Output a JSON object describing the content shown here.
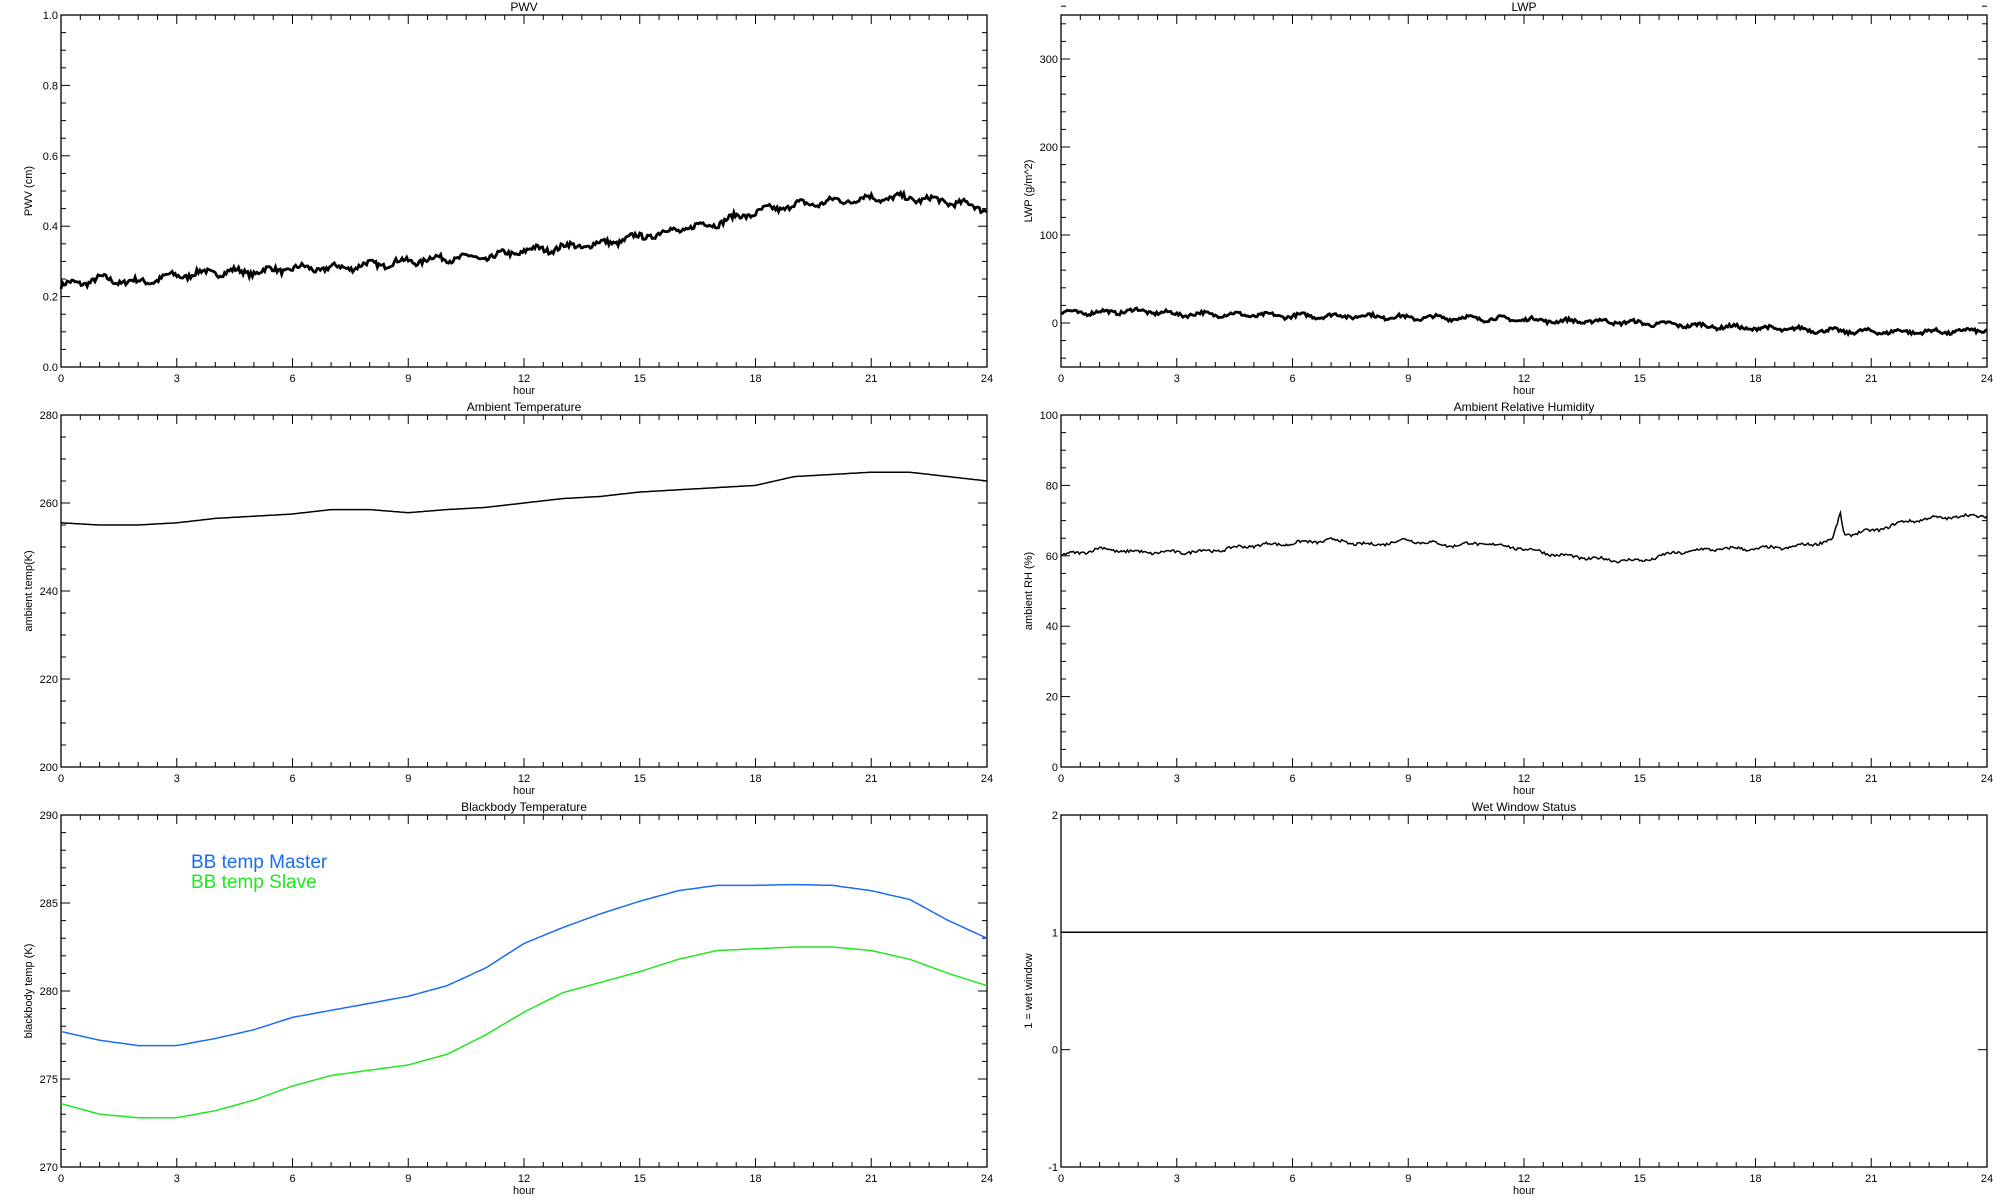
{
  "chart_data": [
    {
      "type": "line",
      "title": "PWV",
      "xlabel": "hour",
      "ylabel": "PWV (cm)",
      "xlim": [
        0,
        24
      ],
      "ylim": [
        0,
        1.0
      ],
      "xticks": [
        "0",
        "3",
        "6",
        "9",
        "12",
        "15",
        "18",
        "21",
        "24"
      ],
      "yticks": [
        "0.0",
        "0.2",
        "0.4",
        "0.6",
        "0.8",
        "1.0"
      ],
      "yminor": 4,
      "noise": 0.008,
      "x": [
        0,
        1,
        2,
        3,
        4,
        5,
        6,
        7,
        8,
        9,
        10,
        11,
        12,
        13,
        14,
        15,
        16,
        17,
        18,
        19,
        20,
        21,
        22,
        23,
        24
      ],
      "series": [
        {
          "name": "PWV",
          "color": "#000000",
          "values": [
            0.23,
            0.25,
            0.24,
            0.26,
            0.27,
            0.27,
            0.28,
            0.28,
            0.29,
            0.3,
            0.31,
            0.31,
            0.33,
            0.34,
            0.35,
            0.37,
            0.39,
            0.41,
            0.44,
            0.46,
            0.47,
            0.48,
            0.48,
            0.47,
            0.45
          ]
        }
      ]
    },
    {
      "type": "line",
      "title": "LWP",
      "xlabel": "hour",
      "ylabel": "LWP (g/m^2)",
      "xlim": [
        0,
        24
      ],
      "ylim": [
        -50,
        350
      ],
      "xticks": [
        "0",
        "3",
        "6",
        "9",
        "12",
        "15",
        "18",
        "21",
        "24"
      ],
      "yticks": [
        "0",
        "100",
        "200",
        "300"
      ],
      "ytick_values": [
        0,
        100,
        200,
        300
      ],
      "yminor": 5,
      "noise": 2,
      "x": [
        0,
        1,
        2,
        3,
        4,
        5,
        6,
        7,
        8,
        9,
        10,
        11,
        12,
        13,
        14,
        15,
        16,
        17,
        18,
        19,
        20,
        21,
        22,
        23,
        24
      ],
      "series": [
        {
          "name": "LWP",
          "color": "#000000",
          "values": [
            12,
            12,
            14,
            10,
            10,
            9,
            8,
            8,
            8,
            6,
            6,
            5,
            4,
            2,
            2,
            0,
            -2,
            -4,
            -6,
            -7,
            -9,
            -10,
            -10,
            -10,
            -8
          ]
        }
      ]
    },
    {
      "type": "line",
      "title": "Ambient Temperature",
      "xlabel": "hour",
      "ylabel": "ambient temp(K)",
      "xlim": [
        0,
        24
      ],
      "ylim": [
        200,
        280
      ],
      "xticks": [
        "0",
        "3",
        "6",
        "9",
        "12",
        "15",
        "18",
        "21",
        "24"
      ],
      "yticks": [
        "200",
        "220",
        "240",
        "260",
        "280"
      ],
      "yminor": 4,
      "noise": 0,
      "x": [
        0,
        1,
        2,
        3,
        4,
        5,
        6,
        7,
        8,
        9,
        10,
        11,
        12,
        13,
        14,
        15,
        16,
        17,
        18,
        19,
        20,
        21,
        22,
        23,
        24
      ],
      "series": [
        {
          "name": "ambient temp",
          "color": "#000000",
          "values": [
            255.5,
            255,
            255,
            255.5,
            256.5,
            257,
            257.5,
            258.5,
            258.5,
            257.8,
            258.5,
            259,
            260,
            261,
            261.5,
            262.5,
            263,
            263.5,
            264,
            266,
            266.5,
            267,
            267,
            266,
            265
          ]
        }
      ]
    },
    {
      "type": "line",
      "title": "Ambient Relative Humidity",
      "xlabel": "hour",
      "ylabel": "ambient RH (%)",
      "xlim": [
        0,
        24
      ],
      "ylim": [
        0,
        100
      ],
      "xticks": [
        "0",
        "3",
        "6",
        "9",
        "12",
        "15",
        "18",
        "21",
        "24"
      ],
      "yticks": [
        "0",
        "20",
        "40",
        "60",
        "80",
        "100"
      ],
      "yminor": 4,
      "noise": 0.4,
      "x": [
        0,
        1,
        2,
        3,
        4,
        5,
        6,
        7,
        8,
        9,
        10,
        11,
        12,
        13,
        14,
        15,
        16,
        17,
        18,
        19,
        20,
        20.2,
        20.3,
        21,
        22,
        23,
        24
      ],
      "series": [
        {
          "name": "ambient RH",
          "color": "#000000",
          "values": [
            60,
            62,
            61,
            61,
            61.5,
            63,
            63.5,
            64.5,
            63,
            64.5,
            63,
            63.5,
            62,
            60,
            59,
            58.5,
            61,
            62,
            62,
            62.5,
            64.5,
            72,
            66,
            67,
            70,
            71,
            71.5
          ]
        }
      ]
    },
    {
      "type": "line",
      "title": "Blackbody Temperature",
      "xlabel": "hour",
      "ylabel": "blackbody temp (K)",
      "xlim": [
        0,
        24
      ],
      "ylim": [
        270,
        290
      ],
      "xticks": [
        "0",
        "3",
        "6",
        "9",
        "12",
        "15",
        "18",
        "21",
        "24"
      ],
      "yticks": [
        "270",
        "275",
        "280",
        "285",
        "290"
      ],
      "yminor": 5,
      "noise": 0,
      "legend": "top-left",
      "x": [
        0,
        1,
        2,
        3,
        4,
        5,
        6,
        7,
        8,
        9,
        10,
        11,
        12,
        13,
        14,
        15,
        16,
        17,
        18,
        19,
        20,
        21,
        22,
        23,
        24
      ],
      "series": [
        {
          "name": "BB temp Master",
          "color": "#1a6cf0",
          "values": [
            277.7,
            277.2,
            276.9,
            276.9,
            277.3,
            277.8,
            278.5,
            278.9,
            279.3,
            279.7,
            280.3,
            281.3,
            282.7,
            283.6,
            284.4,
            285.1,
            285.7,
            286,
            286,
            286.05,
            286,
            285.7,
            285.2,
            284,
            283
          ]
        },
        {
          "name": "BB temp Slave",
          "color": "#22e622",
          "values": [
            273.6,
            273,
            272.8,
            272.8,
            273.2,
            273.8,
            274.6,
            275.2,
            275.5,
            275.8,
            276.4,
            277.5,
            278.8,
            279.9,
            280.5,
            281.1,
            281.8,
            282.3,
            282.4,
            282.5,
            282.5,
            282.3,
            281.8,
            281,
            280.3
          ]
        }
      ]
    },
    {
      "type": "line",
      "title": "Wet Window Status",
      "xlabel": "hour",
      "ylabel": "1 = wet window",
      "xlim": [
        0,
        24
      ],
      "ylim": [
        -1,
        2
      ],
      "xticks": [
        "0",
        "3",
        "6",
        "9",
        "12",
        "15",
        "18",
        "21",
        "24"
      ],
      "yticks": [
        "-1",
        "0",
        "1",
        "2"
      ],
      "yminor": 1,
      "noise": 0,
      "x": [
        0,
        24
      ],
      "series": [
        {
          "name": "wet window",
          "color": "#000000",
          "values": [
            1,
            1
          ]
        }
      ]
    }
  ]
}
